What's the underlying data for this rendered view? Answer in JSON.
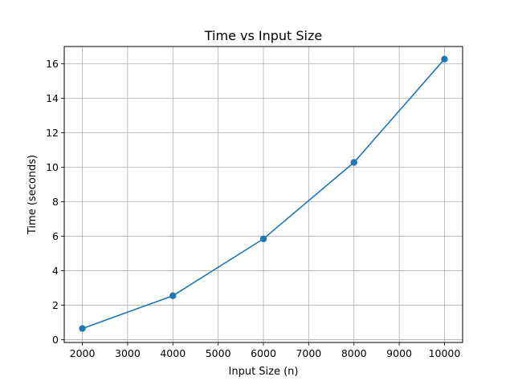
{
  "chart_data": {
    "type": "line",
    "title": "Time vs Input Size",
    "xlabel": "Input Size (n)",
    "ylabel": "Time (seconds)",
    "x": [
      2000,
      4000,
      6000,
      8000,
      10000
    ],
    "series": [
      {
        "values": [
          0.65,
          2.55,
          5.85,
          10.28,
          16.27
        ],
        "color": "#1f77b4",
        "marker": "circle"
      }
    ],
    "xlim": [
      1600,
      10400
    ],
    "ylim": [
      -0.16,
      17.0
    ],
    "xticks": [
      2000,
      3000,
      4000,
      5000,
      6000,
      7000,
      8000,
      9000,
      10000
    ],
    "yticks": [
      0,
      2,
      4,
      6,
      8,
      10,
      12,
      14,
      16
    ],
    "grid": true,
    "grid_color": "#b0b0b0"
  }
}
